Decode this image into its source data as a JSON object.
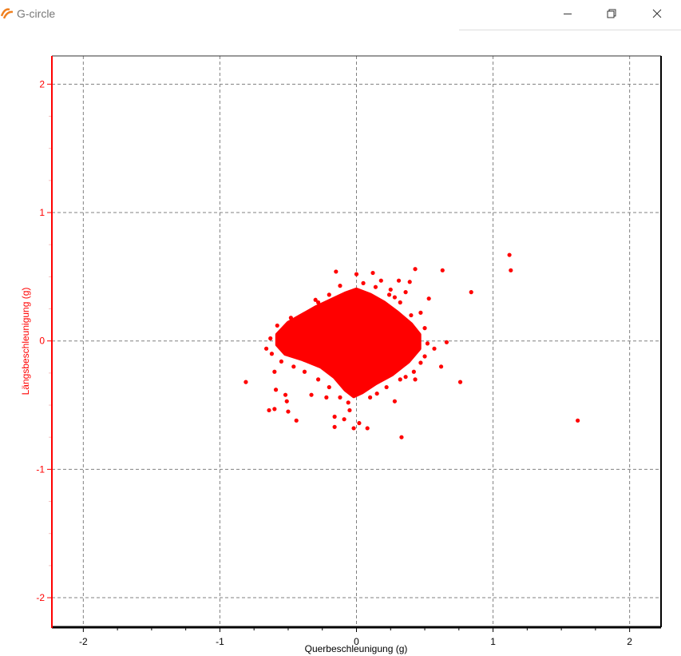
{
  "window": {
    "title": "G-circle",
    "icon": "pr-app-logo",
    "controls": [
      "minimize-icon",
      "restore-icon",
      "close-icon"
    ]
  },
  "colors": {
    "series": "#ff0000",
    "y_axis": "#ff0000",
    "grid": "#808080",
    "frame": "#000000"
  },
  "chart_data": {
    "type": "scatter",
    "title": "",
    "xlabel": "Querbeschleunigung (g)",
    "ylabel": "Längsbeschleunigung (g)",
    "xlim": [
      -2.23,
      2.23
    ],
    "ylim": [
      -2.23,
      2.22
    ],
    "xticks": [
      -2,
      -1,
      0,
      1,
      2
    ],
    "yticks": [
      -2,
      -1,
      0,
      1,
      2
    ],
    "xtick_labels": [
      "-2",
      "-1",
      "0",
      "1",
      "2"
    ],
    "ytick_labels": [
      "-2",
      "-1",
      "0",
      "1",
      "2"
    ],
    "minor_tick_step": 0.25,
    "grid": true,
    "grid_style": "dashed",
    "dense_region": [
      [
        -0.58,
        0.05
      ],
      [
        -0.5,
        0.14
      ],
      [
        -0.4,
        0.2
      ],
      [
        -0.3,
        0.26
      ],
      [
        -0.18,
        0.32
      ],
      [
        -0.08,
        0.37
      ],
      [
        0.0,
        0.4
      ],
      [
        0.1,
        0.36
      ],
      [
        0.2,
        0.3
      ],
      [
        0.3,
        0.22
      ],
      [
        0.4,
        0.13
      ],
      [
        0.46,
        0.05
      ],
      [
        0.46,
        -0.06
      ],
      [
        0.38,
        -0.16
      ],
      [
        0.26,
        -0.26
      ],
      [
        0.14,
        -0.33
      ],
      [
        0.04,
        -0.4
      ],
      [
        -0.02,
        -0.43
      ],
      [
        -0.08,
        -0.38
      ],
      [
        -0.16,
        -0.28
      ],
      [
        -0.26,
        -0.2
      ],
      [
        -0.4,
        -0.14
      ],
      [
        -0.52,
        -0.1
      ],
      [
        -0.58,
        -0.03
      ]
    ],
    "points": [
      [
        1.12,
        0.67
      ],
      [
        1.13,
        0.55
      ],
      [
        0.84,
        0.38
      ],
      [
        0.63,
        0.55
      ],
      [
        0.43,
        0.56
      ],
      [
        1.62,
        -0.62
      ],
      [
        0.76,
        -0.32
      ],
      [
        0.66,
        -0.01
      ],
      [
        0.62,
        -0.2
      ],
      [
        -0.81,
        -0.32
      ],
      [
        0.33,
        -0.75
      ],
      [
        0.28,
        -0.47
      ],
      [
        0.53,
        0.33
      ],
      [
        -0.15,
        0.54
      ],
      [
        -0.64,
        -0.54
      ],
      [
        -0.6,
        -0.53
      ],
      [
        -0.5,
        -0.55
      ],
      [
        -0.44,
        -0.62
      ],
      [
        -0.16,
        -0.67
      ],
      [
        -0.02,
        -0.68
      ],
      [
        0.08,
        -0.68
      ],
      [
        -0.16,
        -0.59
      ],
      [
        -0.09,
        -0.61
      ],
      [
        0.02,
        -0.64
      ],
      [
        -0.52,
        -0.42
      ],
      [
        -0.51,
        -0.47
      ],
      [
        -0.59,
        -0.38
      ],
      [
        -0.6,
        -0.24
      ],
      [
        -0.66,
        -0.06
      ],
      [
        -0.58,
        0.12
      ],
      [
        -0.33,
        -0.42
      ],
      [
        0.12,
        0.53
      ],
      [
        0.0,
        0.52
      ],
      [
        0.18,
        0.47
      ],
      [
        0.31,
        0.47
      ],
      [
        0.39,
        0.46
      ],
      [
        0.47,
        0.22
      ],
      [
        0.57,
        -0.06
      ],
      [
        0.47,
        -0.17
      ],
      [
        0.43,
        -0.3
      ],
      [
        0.15,
        -0.41
      ],
      [
        -0.05,
        -0.54
      ],
      [
        -0.44,
        0.14
      ],
      [
        -0.36,
        0.22
      ],
      [
        -0.28,
        0.3
      ],
      [
        -0.2,
        0.36
      ],
      [
        -0.12,
        0.43
      ],
      [
        0.05,
        0.45
      ],
      [
        0.14,
        0.42
      ],
      [
        0.24,
        0.36
      ],
      [
        0.32,
        0.3
      ],
      [
        0.4,
        0.2
      ],
      [
        0.5,
        0.1
      ],
      [
        0.52,
        -0.02
      ],
      [
        0.5,
        -0.12
      ],
      [
        0.42,
        -0.24
      ],
      [
        0.32,
        -0.3
      ],
      [
        0.22,
        -0.36
      ],
      [
        0.1,
        -0.44
      ],
      [
        -0.06,
        -0.48
      ],
      [
        -0.12,
        -0.44
      ],
      [
        -0.2,
        -0.36
      ],
      [
        -0.28,
        -0.3
      ],
      [
        -0.38,
        -0.24
      ],
      [
        -0.46,
        -0.2
      ],
      [
        -0.55,
        -0.16
      ],
      [
        -0.62,
        -0.1
      ],
      [
        -0.63,
        0.02
      ],
      [
        -0.55,
        0.08
      ],
      [
        -0.48,
        0.18
      ],
      [
        0.36,
        0.38
      ],
      [
        0.25,
        0.4
      ],
      [
        -0.3,
        0.32
      ],
      [
        -0.22,
        -0.44
      ],
      [
        0.36,
        -0.28
      ],
      [
        0.28,
        0.34
      ]
    ]
  }
}
